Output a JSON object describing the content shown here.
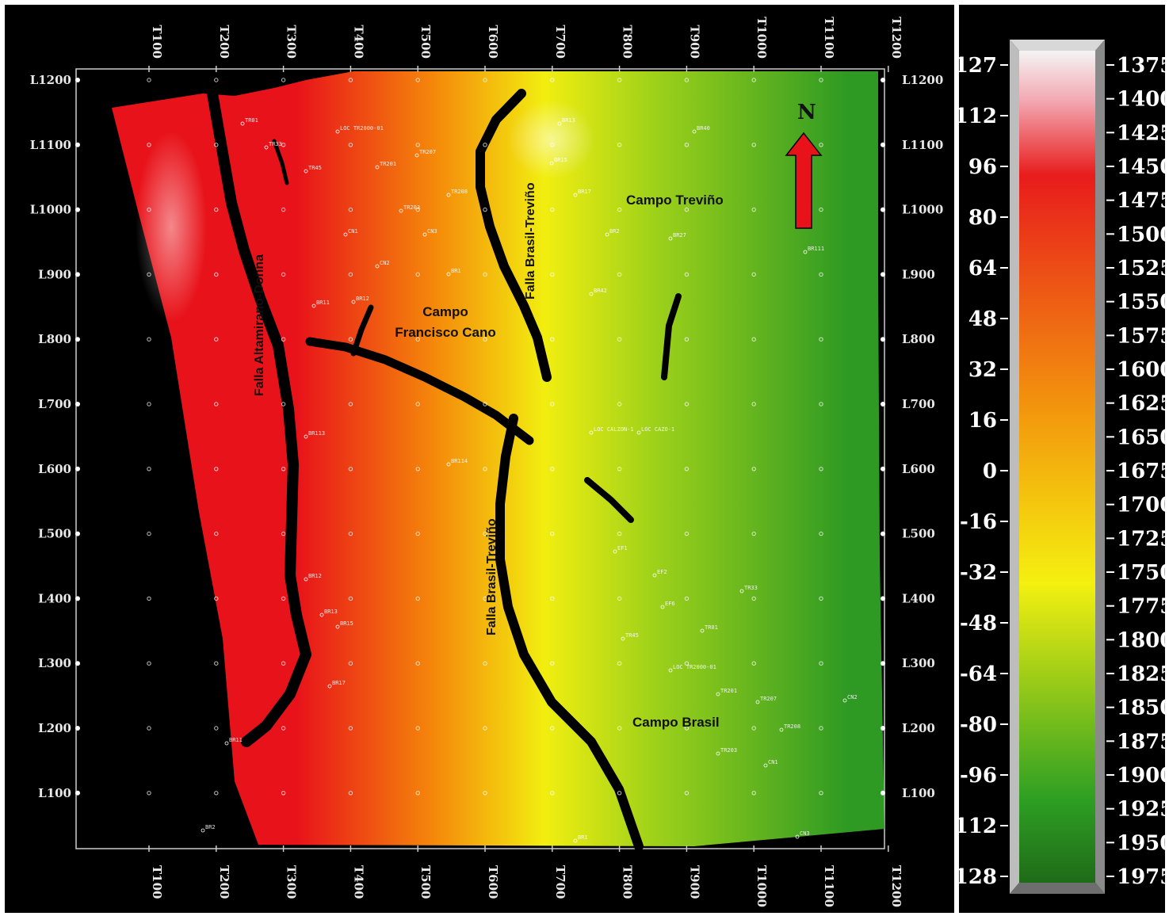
{
  "map": {
    "x_labels": [
      "T100",
      "T200",
      "T300",
      "T400",
      "T500",
      "T600",
      "T700",
      "T800",
      "T900",
      "T1000",
      "T1100",
      "T1200"
    ],
    "y_labels": [
      "L1200",
      "L1100",
      "L1000",
      "L900",
      "L800",
      "L700",
      "L600",
      "L500",
      "L400",
      "L300",
      "L200",
      "L100"
    ],
    "fields": [
      {
        "id": "trevino",
        "text": "Campo Treviño"
      },
      {
        "id": "francisco1",
        "text": "Campo"
      },
      {
        "id": "francisco2",
        "text": "Francisco Cano"
      },
      {
        "id": "brasil",
        "text": "Campo Brasil"
      }
    ],
    "faults": [
      {
        "id": "altamirano",
        "text": "Falla Altamirano-Donna"
      },
      {
        "id": "brasil_north",
        "text": "Falla Brasil-Treviño"
      },
      {
        "id": "brasil_south",
        "text": "Falla Brasil-Treviño"
      }
    ],
    "north": "N",
    "colors": {
      "high": "#e8131a",
      "mid_high": "#f58a0a",
      "mid": "#f2ee10",
      "mid_low": "#9fd21a",
      "low": "#2f9a23",
      "fault": "#000000",
      "background": "#000000",
      "north_arrow": "#e8131a"
    },
    "wells": [
      "TR01",
      "TR33",
      "TR45",
      "LOC TR2000-01",
      "TR201",
      "TR207",
      "TR208",
      "TR203",
      "CN1",
      "CN2",
      "CN3",
      "BR1",
      "BR11",
      "BR12",
      "BR13",
      "BR15",
      "BR17",
      "BR2",
      "BR27",
      "BR40",
      "BR42",
      "BR111",
      "BR113",
      "BR114",
      "LOC CALZON-1",
      "LOC CAZO-1",
      "EF1",
      "EF2",
      "EF6"
    ]
  },
  "legend": {
    "left_values": [
      "127",
      "112",
      "96",
      "80",
      "64",
      "48",
      "32",
      "16",
      "0",
      "-16",
      "-32",
      "-48",
      "-64",
      "-80",
      "-96",
      "-112",
      "-128"
    ],
    "right_values": [
      "1375",
      "1400",
      "1425",
      "1450",
      "1475",
      "1500",
      "1525",
      "1550",
      "1575",
      "1600",
      "1625",
      "1650",
      "1675",
      "1700",
      "1725",
      "1750",
      "1775",
      "1800",
      "1825",
      "1850",
      "1875",
      "1900",
      "1925",
      "1950",
      "1975"
    ],
    "colors": {
      "top": "#f4f4f4",
      "pink": "#f3a8b2",
      "red": "#e81c1c",
      "orange": "#f39a0d",
      "yellow": "#f4f010",
      "green": "#2e9f23",
      "bottom": "#1f6b18"
    }
  }
}
